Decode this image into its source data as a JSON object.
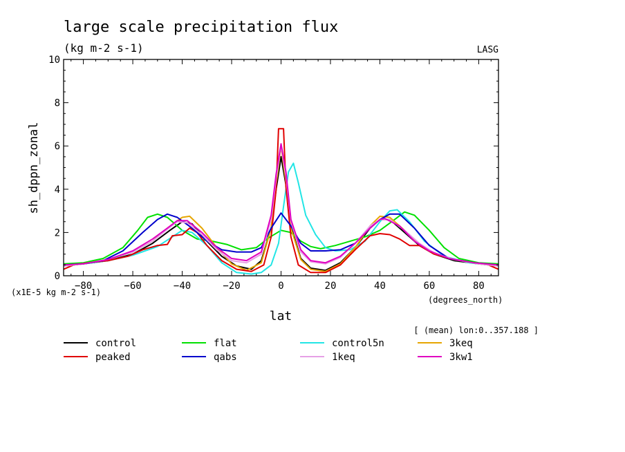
{
  "title": "large scale precipitation flux",
  "units_label": "(kg m-2 s-1)",
  "source_label": "LASG",
  "scale_note": "(x1E-5 kg m-2 s-1)",
  "xunits_label": "(degrees_north)",
  "mean_note": "[ (mean) lon:0..357.188 ]",
  "chart_data": {
    "type": "line",
    "title": "large scale precipitation flux",
    "xlabel": "lat",
    "ylabel": "sh_dppn_zonal",
    "xlim": [
      -88,
      88
    ],
    "ylim": [
      0,
      10
    ],
    "xticks": [
      -80,
      -60,
      -40,
      -20,
      0,
      20,
      40,
      60,
      80
    ],
    "yticks": [
      0,
      2,
      4,
      6,
      8,
      10
    ],
    "legend_position": "bottom",
    "series": [
      {
        "name": "control",
        "color": "#000000",
        "points": [
          [
            -88,
            0.45
          ],
          [
            -80,
            0.55
          ],
          [
            -70,
            0.7
          ],
          [
            -60,
            1.0
          ],
          [
            -52,
            1.5
          ],
          [
            -45,
            2.1
          ],
          [
            -40,
            2.5
          ],
          [
            -36,
            2.4
          ],
          [
            -30,
            1.6
          ],
          [
            -24,
            0.9
          ],
          [
            -18,
            0.45
          ],
          [
            -12,
            0.3
          ],
          [
            -8,
            0.7
          ],
          [
            -4,
            2.2
          ],
          [
            -2,
            4.0
          ],
          [
            0,
            5.5
          ],
          [
            2,
            4.2
          ],
          [
            4,
            2.3
          ],
          [
            8,
            0.8
          ],
          [
            12,
            0.35
          ],
          [
            18,
            0.25
          ],
          [
            24,
            0.6
          ],
          [
            30,
            1.3
          ],
          [
            36,
            2.2
          ],
          [
            40,
            2.6
          ],
          [
            44,
            2.6
          ],
          [
            50,
            2.0
          ],
          [
            56,
            1.4
          ],
          [
            62,
            1.0
          ],
          [
            70,
            0.7
          ],
          [
            80,
            0.55
          ],
          [
            88,
            0.45
          ]
        ]
      },
      {
        "name": "flat",
        "color": "#00e000",
        "points": [
          [
            -88,
            0.55
          ],
          [
            -80,
            0.6
          ],
          [
            -72,
            0.8
          ],
          [
            -64,
            1.3
          ],
          [
            -58,
            2.1
          ],
          [
            -54,
            2.7
          ],
          [
            -50,
            2.85
          ],
          [
            -46,
            2.7
          ],
          [
            -40,
            2.1
          ],
          [
            -34,
            1.7
          ],
          [
            -28,
            1.6
          ],
          [
            -22,
            1.45
          ],
          [
            -16,
            1.2
          ],
          [
            -10,
            1.3
          ],
          [
            -5,
            1.75
          ],
          [
            0,
            2.1
          ],
          [
            4,
            2.0
          ],
          [
            8,
            1.6
          ],
          [
            12,
            1.35
          ],
          [
            16,
            1.25
          ],
          [
            22,
            1.4
          ],
          [
            28,
            1.6
          ],
          [
            34,
            1.8
          ],
          [
            40,
            2.1
          ],
          [
            46,
            2.6
          ],
          [
            50,
            2.95
          ],
          [
            54,
            2.8
          ],
          [
            60,
            2.1
          ],
          [
            66,
            1.3
          ],
          [
            72,
            0.8
          ],
          [
            80,
            0.6
          ],
          [
            88,
            0.55
          ]
        ]
      },
      {
        "name": "control5n",
        "color": "#22e5e5",
        "points": [
          [
            -88,
            0.45
          ],
          [
            -80,
            0.55
          ],
          [
            -70,
            0.7
          ],
          [
            -60,
            0.95
          ],
          [
            -50,
            1.35
          ],
          [
            -44,
            1.8
          ],
          [
            -40,
            2.1
          ],
          [
            -36,
            2.0
          ],
          [
            -30,
            1.4
          ],
          [
            -24,
            0.6
          ],
          [
            -18,
            0.15
          ],
          [
            -12,
            0.08
          ],
          [
            -8,
            0.15
          ],
          [
            -4,
            0.5
          ],
          [
            -1,
            1.5
          ],
          [
            1,
            3.2
          ],
          [
            3,
            4.8
          ],
          [
            5,
            5.2
          ],
          [
            7,
            4.3
          ],
          [
            10,
            2.8
          ],
          [
            14,
            1.9
          ],
          [
            18,
            1.3
          ],
          [
            22,
            1.15
          ],
          [
            28,
            1.2
          ],
          [
            34,
            1.6
          ],
          [
            40,
            2.5
          ],
          [
            44,
            3.0
          ],
          [
            47,
            3.05
          ],
          [
            52,
            2.5
          ],
          [
            58,
            1.6
          ],
          [
            66,
            0.9
          ],
          [
            76,
            0.6
          ],
          [
            88,
            0.45
          ]
        ]
      },
      {
        "name": "3keq",
        "color": "#e6a500",
        "points": [
          [
            -88,
            0.45
          ],
          [
            -80,
            0.55
          ],
          [
            -70,
            0.75
          ],
          [
            -60,
            1.1
          ],
          [
            -52,
            1.6
          ],
          [
            -46,
            2.2
          ],
          [
            -40,
            2.7
          ],
          [
            -37,
            2.75
          ],
          [
            -32,
            2.2
          ],
          [
            -26,
            1.3
          ],
          [
            -20,
            0.55
          ],
          [
            -14,
            0.25
          ],
          [
            -8,
            0.6
          ],
          [
            -4,
            2.2
          ],
          [
            -2,
            4.2
          ],
          [
            0,
            6.0
          ],
          [
            2,
            4.3
          ],
          [
            4,
            2.2
          ],
          [
            8,
            0.75
          ],
          [
            12,
            0.3
          ],
          [
            18,
            0.2
          ],
          [
            24,
            0.55
          ],
          [
            30,
            1.3
          ],
          [
            36,
            2.3
          ],
          [
            40,
            2.75
          ],
          [
            44,
            2.7
          ],
          [
            50,
            2.1
          ],
          [
            56,
            1.45
          ],
          [
            62,
            1.0
          ],
          [
            70,
            0.75
          ],
          [
            80,
            0.55
          ],
          [
            88,
            0.45
          ]
        ]
      },
      {
        "name": "peaked",
        "color": "#e00000",
        "points": [
          [
            -88,
            0.3
          ],
          [
            -84,
            0.5
          ],
          [
            -78,
            0.6
          ],
          [
            -70,
            0.7
          ],
          [
            -62,
            0.9
          ],
          [
            -56,
            1.2
          ],
          [
            -50,
            1.4
          ],
          [
            -46,
            1.45
          ],
          [
            -44,
            1.85
          ],
          [
            -40,
            1.9
          ],
          [
            -37,
            2.2
          ],
          [
            -34,
            2.0
          ],
          [
            -30,
            1.4
          ],
          [
            -24,
            0.7
          ],
          [
            -18,
            0.3
          ],
          [
            -12,
            0.2
          ],
          [
            -7,
            0.5
          ],
          [
            -4,
            1.8
          ],
          [
            -2,
            4.0
          ],
          [
            -1,
            6.8
          ],
          [
            1,
            6.8
          ],
          [
            2,
            4.1
          ],
          [
            4,
            1.8
          ],
          [
            7,
            0.5
          ],
          [
            12,
            0.15
          ],
          [
            18,
            0.15
          ],
          [
            24,
            0.5
          ],
          [
            30,
            1.2
          ],
          [
            36,
            1.85
          ],
          [
            40,
            1.95
          ],
          [
            44,
            1.9
          ],
          [
            48,
            1.7
          ],
          [
            52,
            1.4
          ],
          [
            56,
            1.4
          ],
          [
            62,
            1.0
          ],
          [
            70,
            0.75
          ],
          [
            78,
            0.6
          ],
          [
            84,
            0.5
          ],
          [
            88,
            0.3
          ]
        ]
      },
      {
        "name": "qabs",
        "color": "#0000cc",
        "points": [
          [
            -88,
            0.5
          ],
          [
            -80,
            0.55
          ],
          [
            -72,
            0.7
          ],
          [
            -64,
            1.15
          ],
          [
            -56,
            2.0
          ],
          [
            -50,
            2.6
          ],
          [
            -46,
            2.85
          ],
          [
            -42,
            2.7
          ],
          [
            -36,
            2.2
          ],
          [
            -30,
            1.6
          ],
          [
            -24,
            1.2
          ],
          [
            -18,
            1.1
          ],
          [
            -12,
            1.1
          ],
          [
            -8,
            1.3
          ],
          [
            -4,
            2.2
          ],
          [
            0,
            2.9
          ],
          [
            4,
            2.3
          ],
          [
            8,
            1.5
          ],
          [
            12,
            1.15
          ],
          [
            18,
            1.15
          ],
          [
            24,
            1.2
          ],
          [
            30,
            1.5
          ],
          [
            36,
            2.2
          ],
          [
            40,
            2.6
          ],
          [
            44,
            2.85
          ],
          [
            48,
            2.85
          ],
          [
            54,
            2.2
          ],
          [
            60,
            1.4
          ],
          [
            68,
            0.8
          ],
          [
            78,
            0.6
          ],
          [
            88,
            0.5
          ]
        ]
      },
      {
        "name": "1keq",
        "color": "#e6a0e6",
        "points": [
          [
            -88,
            0.45
          ],
          [
            -80,
            0.55
          ],
          [
            -70,
            0.75
          ],
          [
            -60,
            1.1
          ],
          [
            -52,
            1.6
          ],
          [
            -46,
            2.15
          ],
          [
            -42,
            2.5
          ],
          [
            -38,
            2.45
          ],
          [
            -32,
            1.9
          ],
          [
            -26,
            1.2
          ],
          [
            -20,
            0.7
          ],
          [
            -14,
            0.6
          ],
          [
            -8,
            1.0
          ],
          [
            -4,
            2.6
          ],
          [
            -2,
            4.5
          ],
          [
            0,
            6.0
          ],
          [
            2,
            4.6
          ],
          [
            4,
            2.5
          ],
          [
            8,
            1.1
          ],
          [
            12,
            0.65
          ],
          [
            18,
            0.55
          ],
          [
            24,
            0.85
          ],
          [
            30,
            1.5
          ],
          [
            36,
            2.3
          ],
          [
            40,
            2.6
          ],
          [
            44,
            2.6
          ],
          [
            50,
            2.1
          ],
          [
            56,
            1.5
          ],
          [
            62,
            1.05
          ],
          [
            70,
            0.75
          ],
          [
            80,
            0.55
          ],
          [
            88,
            0.45
          ]
        ]
      },
      {
        "name": "3kw1",
        "color": "#e000c0",
        "points": [
          [
            -88,
            0.5
          ],
          [
            -80,
            0.55
          ],
          [
            -70,
            0.75
          ],
          [
            -60,
            1.15
          ],
          [
            -52,
            1.7
          ],
          [
            -46,
            2.2
          ],
          [
            -42,
            2.55
          ],
          [
            -38,
            2.55
          ],
          [
            -32,
            2.0
          ],
          [
            -26,
            1.3
          ],
          [
            -20,
            0.8
          ],
          [
            -14,
            0.7
          ],
          [
            -8,
            1.1
          ],
          [
            -4,
            2.8
          ],
          [
            -2,
            4.7
          ],
          [
            0,
            6.1
          ],
          [
            2,
            4.8
          ],
          [
            4,
            2.6
          ],
          [
            8,
            1.2
          ],
          [
            12,
            0.7
          ],
          [
            18,
            0.6
          ],
          [
            24,
            0.9
          ],
          [
            30,
            1.5
          ],
          [
            36,
            2.2
          ],
          [
            40,
            2.6
          ],
          [
            42,
            2.65
          ],
          [
            48,
            2.3
          ],
          [
            54,
            1.6
          ],
          [
            60,
            1.15
          ],
          [
            68,
            0.8
          ],
          [
            78,
            0.6
          ],
          [
            88,
            0.5
          ]
        ]
      }
    ]
  }
}
